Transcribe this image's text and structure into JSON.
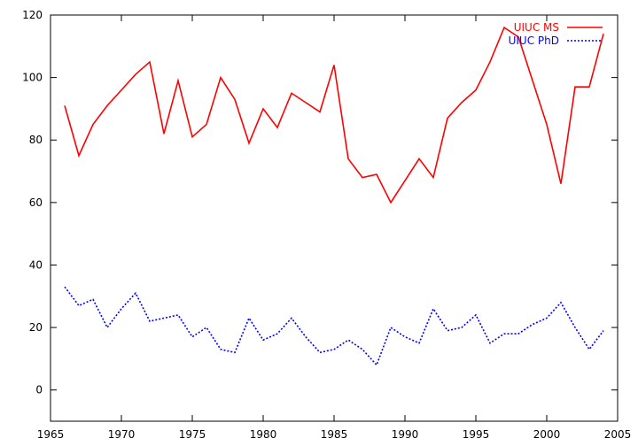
{
  "chart_data": {
    "type": "line",
    "title": "",
    "xlabel": "",
    "ylabel": "",
    "xlim": [
      1965,
      2005
    ],
    "ylim": [
      -10,
      120
    ],
    "xticks": [
      1965,
      1970,
      1975,
      1980,
      1985,
      1990,
      1995,
      2000,
      2005
    ],
    "yticks": [
      0,
      20,
      40,
      60,
      80,
      100,
      120
    ],
    "grid": false,
    "legend_position": "top-right",
    "series": [
      {
        "name": "UIUC MS",
        "color": "#ff0000",
        "style": "solid",
        "x": [
          1966,
          1967,
          1968,
          1969,
          1970,
          1971,
          1972,
          1973,
          1974,
          1975,
          1976,
          1977,
          1978,
          1979,
          1980,
          1981,
          1982,
          1983,
          1984,
          1985,
          1986,
          1987,
          1988,
          1989,
          1990,
          1991,
          1992,
          1993,
          1994,
          1995,
          1996,
          1997,
          1998,
          1999,
          2000,
          2001,
          2002,
          2003,
          2004
        ],
        "values": [
          91,
          75,
          85,
          91,
          96,
          101,
          105,
          82,
          99,
          81,
          85,
          100,
          93,
          79,
          90,
          84,
          95,
          92,
          89,
          104,
          74,
          68,
          69,
          60,
          67,
          74,
          68,
          87,
          92,
          96,
          105,
          116,
          113,
          99,
          85,
          66,
          97,
          97,
          114
        ]
      },
      {
        "name": "UIUC PhD",
        "color": "#0000ff",
        "style": "dotted",
        "x": [
          1966,
          1967,
          1968,
          1969,
          1970,
          1971,
          1972,
          1973,
          1974,
          1975,
          1976,
          1977,
          1978,
          1979,
          1980,
          1981,
          1982,
          1983,
          1984,
          1985,
          1986,
          1987,
          1988,
          1989,
          1990,
          1991,
          1992,
          1993,
          1994,
          1995,
          1996,
          1997,
          1998,
          1999,
          2000,
          2001,
          2002,
          2003,
          2004
        ],
        "values": [
          33,
          27,
          29,
          20,
          26,
          31,
          22,
          23,
          24,
          17,
          20,
          13,
          12,
          23,
          16,
          18,
          23,
          17,
          12,
          13,
          16,
          13,
          8,
          20,
          17,
          15,
          26,
          19,
          20,
          24,
          15,
          18,
          18,
          21,
          23,
          28,
          20,
          13,
          19
        ]
      }
    ]
  }
}
